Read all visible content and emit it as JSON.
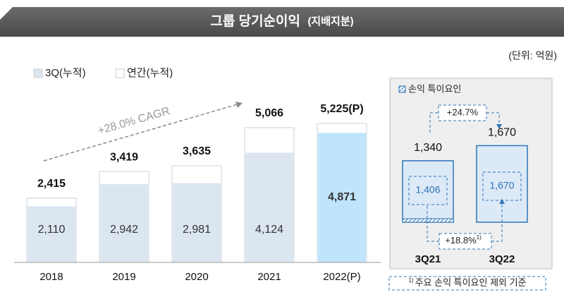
{
  "title": "그룹 당기순이익",
  "title_sub": "(지배지분)",
  "unit": "(단위: 억원)",
  "chart_data": [
    {
      "type": "bar",
      "categories": [
        "2018",
        "2019",
        "2020",
        "2021",
        "2022(P)"
      ],
      "series": [
        {
          "name": "3Q(누적)",
          "color": "#dbe6f1",
          "values": [
            2110,
            2942,
            2981,
            4124,
            4871
          ],
          "value_labels": [
            "2,110",
            "2,942",
            "2,981",
            "4,124",
            "4,871"
          ]
        },
        {
          "name": "연간(누적)",
          "color": "#ffffff",
          "values": [
            2415,
            3419,
            3635,
            5066,
            5225
          ],
          "value_labels": [
            "2,415",
            "3,419",
            "3,635",
            "5,066",
            "5,225(P)"
          ]
        }
      ],
      "highlight_color": "#bfe4fb",
      "annotation": "+28.0% CAGR"
    },
    {
      "type": "bar",
      "legend": "손익 특이요인",
      "categories": [
        "3Q21",
        "3Q22"
      ],
      "series": [
        {
          "color": "#dce9f7",
          "values": [
            1340,
            1670
          ],
          "value_labels": [
            "1,340",
            "1,670"
          ]
        },
        {
          "values": [
            1406,
            1670
          ],
          "value_labels": [
            "1,406",
            "1,670"
          ]
        }
      ],
      "annotations": [
        {
          "text": "+24.7%"
        },
        {
          "text": "+18.8%",
          "marker": "1)"
        }
      ]
    }
  ],
  "footnote": {
    "marker": "1)",
    "text": "주요 손익 특이요인 제외 기준"
  }
}
